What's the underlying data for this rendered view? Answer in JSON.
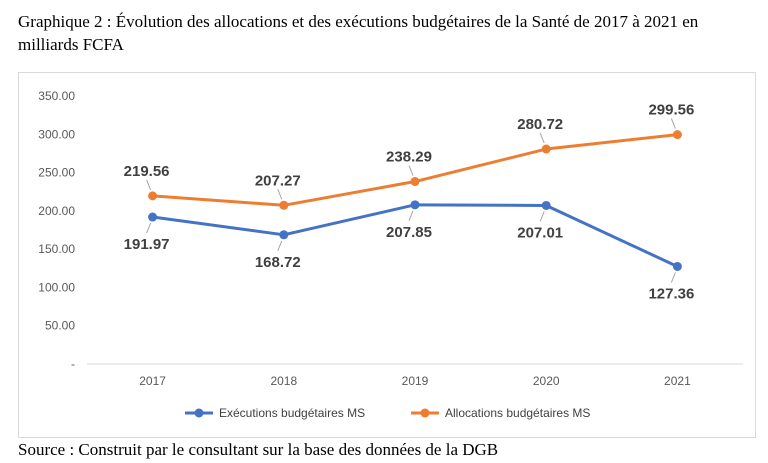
{
  "caption": "Graphique 2 : Évolution des allocations et des exécutions budgétaires de la Santé de 2017 à 2021 en milliards FCFA",
  "source": "Source : Construit par le consultant sur la base des données de la DGB",
  "chart_data": {
    "type": "line",
    "title": "",
    "xlabel": "",
    "ylabel": "",
    "categories": [
      "2017",
      "2018",
      "2019",
      "2020",
      "2021"
    ],
    "y_ticks": [
      "-",
      "50.00",
      "100.00",
      "150.00",
      "200.00",
      "250.00",
      "300.00",
      "350.00"
    ],
    "ylim": [
      0,
      350
    ],
    "grid": false,
    "legend_position": "bottom",
    "series": [
      {
        "name": "Exécutions budgétaires MS",
        "color": "#4472c4",
        "values": [
          191.97,
          168.72,
          207.85,
          207.01,
          127.36
        ],
        "labels": [
          "191.97",
          "168.72",
          "207.85",
          "207.01",
          "127.36"
        ],
        "label_position": "below"
      },
      {
        "name": "Allocations budgétaires MS",
        "color": "#ed7d31",
        "values": [
          219.56,
          207.27,
          238.29,
          280.72,
          299.56
        ],
        "labels": [
          "219.56",
          "207.27",
          "238.29",
          "280.72",
          "299.56"
        ],
        "label_position": "above"
      }
    ]
  }
}
